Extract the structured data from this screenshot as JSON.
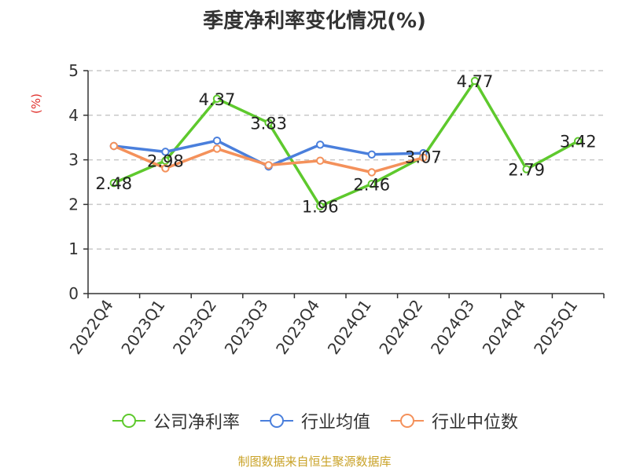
{
  "title": "季度净利率变化情况(%)",
  "y_unit": "(%)",
  "source": "制图数据来自恒生聚源数据库",
  "colors": {
    "company": "#5ec92d",
    "industry_avg": "#4a7fdc",
    "industry_median": "#f4915b",
    "grid": "#c8c8c8",
    "axis": "#333333",
    "unit": "#e0302c",
    "source": "#c9a227"
  },
  "chart_data": {
    "type": "line",
    "title": "季度净利率变化情况(%)",
    "ylabel": "(%)",
    "xlabel": "",
    "ylim": [
      0,
      5
    ],
    "yticks": [
      0,
      1,
      2,
      3,
      4,
      5
    ],
    "grid": true,
    "legend_position": "bottom",
    "categories": [
      "2022Q4",
      "2023Q1",
      "2023Q2",
      "2023Q3",
      "2023Q4",
      "2024Q1",
      "2024Q2",
      "2024Q3",
      "2024Q4",
      "2025Q1"
    ],
    "series": [
      {
        "name": "公司净利率",
        "color": "#5ec92d",
        "values": [
          2.48,
          2.98,
          4.37,
          3.83,
          1.96,
          2.46,
          3.07,
          4.77,
          2.79,
          3.42
        ],
        "labels": [
          "2.48",
          "2.98",
          "4.37",
          "3.83",
          "1.96",
          "2.46",
          "3.07",
          "4.77",
          "2.79",
          "3.42"
        ]
      },
      {
        "name": "行业均值",
        "color": "#4a7fdc",
        "values": [
          3.31,
          3.18,
          3.43,
          2.85,
          3.34,
          3.12,
          3.15,
          null,
          null,
          null
        ]
      },
      {
        "name": "行业中位数",
        "color": "#f4915b",
        "values": [
          3.31,
          2.81,
          3.25,
          2.88,
          2.98,
          2.72,
          3.05,
          null,
          null,
          null
        ]
      }
    ]
  }
}
